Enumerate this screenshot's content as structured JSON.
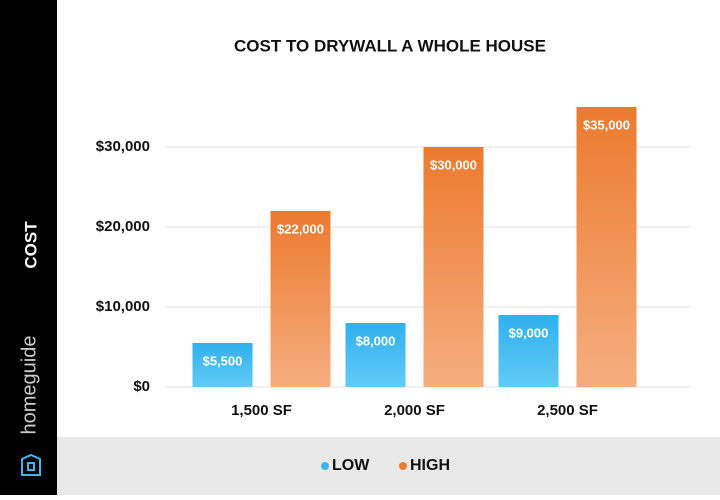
{
  "chart_data": {
    "type": "bar",
    "title": "COST TO DRYWALL A WHOLE HOUSE",
    "y_label": "COST",
    "brand": "homeguide",
    "categories": [
      "1,500 SF",
      "2,000 SF",
      "2,500 SF"
    ],
    "series": [
      {
        "name": "LOW",
        "color": "#3db6ef",
        "values": [
          5500,
          8000,
          9000
        ],
        "value_labels": [
          "$5,500",
          "$8,000",
          "$9,000"
        ]
      },
      {
        "name": "HIGH",
        "color": "#ee7d33",
        "values": [
          22000,
          30000,
          35000
        ],
        "value_labels": [
          "$22,000",
          "$30,000",
          "$35,000"
        ]
      }
    ],
    "ylim": [
      0,
      35000
    ],
    "yticks": [
      {
        "value": 0,
        "label": "$0"
      },
      {
        "value": 10000,
        "label": "$10,000"
      },
      {
        "value": 20000,
        "label": "$20,000"
      },
      {
        "value": 30000,
        "label": "$30,000"
      }
    ],
    "grid": true,
    "legend": "bottom"
  }
}
